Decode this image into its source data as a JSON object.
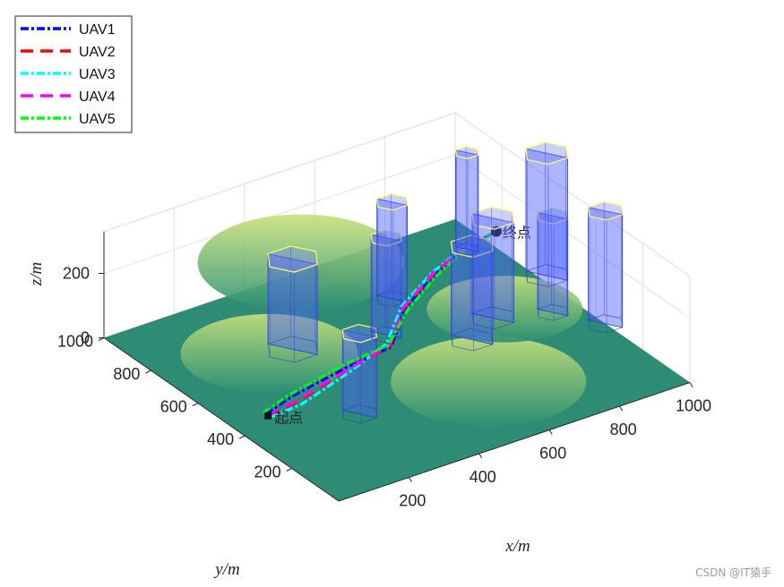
{
  "chart_data": {
    "type": "surface3d",
    "xlabel": "x/m",
    "ylabel": "y/m",
    "zlabel": "z/m",
    "xlim": [
      0,
      1000
    ],
    "ylim": [
      0,
      1000
    ],
    "zlim": [
      0,
      300
    ],
    "xticks": [
      "200",
      "400",
      "600",
      "800",
      "1000"
    ],
    "yticks": [
      "200",
      "400",
      "600",
      "800",
      "1000"
    ],
    "zticks": [
      "0",
      "200"
    ],
    "grid": true,
    "legend_position": "top-left",
    "start_label": "起点",
    "end_label": "终点",
    "start_point": {
      "x": 100,
      "y": 450,
      "z": 0
    },
    "end_point": {
      "x": 930,
      "y": 720,
      "z": 130
    },
    "terrain_hills": [
      {
        "x": 560,
        "y": 200,
        "h": 170
      },
      {
        "x": 520,
        "y": 940,
        "h": 200
      },
      {
        "x": 230,
        "y": 640,
        "h": 120
      },
      {
        "x": 820,
        "y": 520,
        "h": 60
      }
    ],
    "obstacles": [
      {
        "x": 280,
        "y": 330,
        "r": 45,
        "h": 250
      },
      {
        "x": 330,
        "y": 690,
        "r": 65,
        "h": 280
      },
      {
        "x": 550,
        "y": 620,
        "r": 40,
        "h": 300
      },
      {
        "x": 660,
        "y": 760,
        "r": 40,
        "h": 300
      },
      {
        "x": 700,
        "y": 480,
        "r": 55,
        "h": 290
      },
      {
        "x": 800,
        "y": 540,
        "r": 55,
        "h": 310
      },
      {
        "x": 940,
        "y": 860,
        "r": 30,
        "h": 300
      },
      {
        "x": 930,
        "y": 480,
        "r": 40,
        "h": 300
      },
      {
        "x": 1020,
        "y": 640,
        "r": 55,
        "h": 380
      },
      {
        "x": 1000,
        "y": 360,
        "r": 45,
        "h": 350
      }
    ],
    "series": [
      {
        "name": "UAV1",
        "color": "#0000ff",
        "dash": "9,3,3,3",
        "points": [
          [
            100,
            460,
            0
          ],
          [
            180,
            470,
            20
          ],
          [
            330,
            460,
            60
          ],
          [
            450,
            450,
            85
          ],
          [
            560,
            555,
            110
          ],
          [
            700,
            640,
            120
          ],
          [
            820,
            700,
            125
          ],
          [
            930,
            720,
            130
          ]
        ]
      },
      {
        "name": "UAV2",
        "color": "#ff0000",
        "dash": "14,8",
        "points": [
          [
            100,
            450,
            0
          ],
          [
            180,
            440,
            20
          ],
          [
            330,
            450,
            60
          ],
          [
            450,
            455,
            85
          ],
          [
            560,
            560,
            110
          ],
          [
            700,
            645,
            120
          ],
          [
            820,
            698,
            125
          ],
          [
            930,
            720,
            130
          ]
        ]
      },
      {
        "name": "UAV3",
        "color": "#00ffff",
        "dash": "9,3,3,3",
        "points": [
          [
            100,
            440,
            0
          ],
          [
            180,
            425,
            20
          ],
          [
            330,
            440,
            60
          ],
          [
            450,
            470,
            85
          ],
          [
            560,
            570,
            110
          ],
          [
            700,
            652,
            120
          ],
          [
            820,
            702,
            125
          ],
          [
            930,
            720,
            130
          ]
        ]
      },
      {
        "name": "UAV4",
        "color": "#ff00ff",
        "dash": "14,8",
        "points": [
          [
            100,
            452,
            0
          ],
          [
            180,
            445,
            20
          ],
          [
            330,
            452,
            60
          ],
          [
            450,
            458,
            85
          ],
          [
            560,
            562,
            110
          ],
          [
            700,
            647,
            120
          ],
          [
            820,
            700,
            125
          ],
          [
            930,
            720,
            130
          ]
        ]
      },
      {
        "name": "UAV5",
        "color": "#00ff00",
        "dash": "9,3,3,3",
        "points": [
          [
            100,
            470,
            0
          ],
          [
            180,
            480,
            20
          ],
          [
            330,
            475,
            60
          ],
          [
            450,
            462,
            85
          ],
          [
            560,
            545,
            110
          ],
          [
            700,
            632,
            120
          ],
          [
            820,
            694,
            125
          ],
          [
            930,
            720,
            130
          ]
        ]
      }
    ]
  },
  "watermark": "CSDN @IT猿手"
}
